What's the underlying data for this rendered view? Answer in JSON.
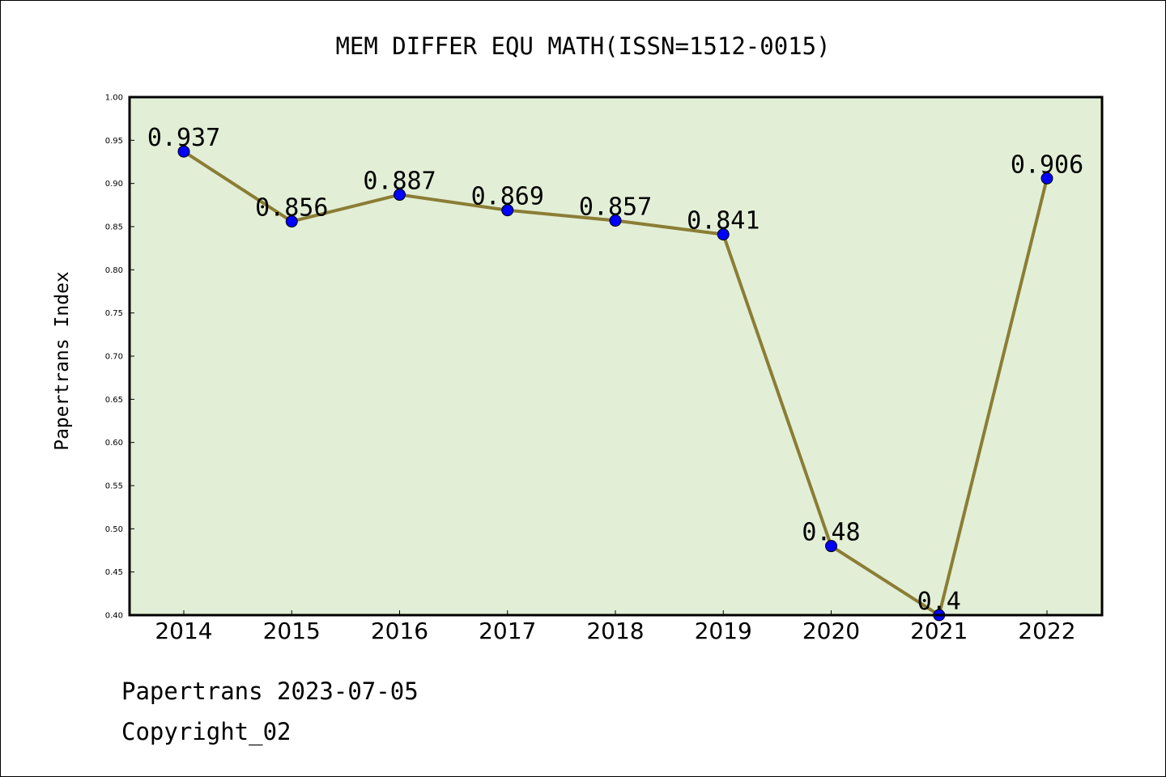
{
  "chart_data": {
    "type": "line",
    "title": "MEM DIFFER EQU MATH(ISSN=1512-0015)",
    "xlabel": "",
    "ylabel": "Papertrans Index",
    "categories": [
      "2014",
      "2015",
      "2016",
      "2017",
      "2018",
      "2019",
      "2020",
      "2021",
      "2022"
    ],
    "values": [
      0.937,
      0.856,
      0.887,
      0.869,
      0.857,
      0.841,
      0.48,
      0.4,
      0.906
    ],
    "data_labels": [
      "0.937",
      "0.856",
      "0.887",
      "0.869",
      "0.857",
      "0.841",
      "0.48",
      "0.4",
      "0.906"
    ],
    "ylim": [
      0.4,
      1.0
    ],
    "yticks": [
      "0.40",
      "0.45",
      "0.50",
      "0.55",
      "0.60",
      "0.65",
      "0.70",
      "0.75",
      "0.80",
      "0.85",
      "0.90",
      "0.95",
      "1.00"
    ],
    "grid": false,
    "colors": {
      "plot_background": "#e2efd6",
      "line": "#8b7d35",
      "marker": "#0000ff"
    }
  },
  "footer": {
    "line1": "Papertrans 2023-07-05",
    "line2": "Copyright_02"
  }
}
